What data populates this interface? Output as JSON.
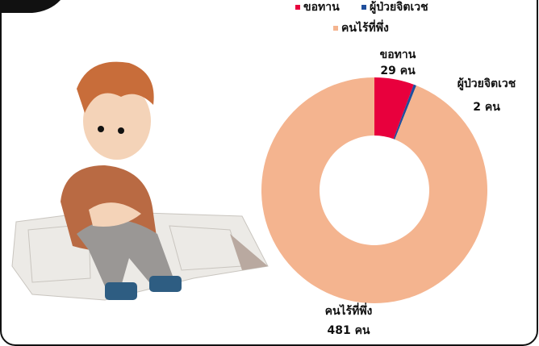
{
  "chart_data": {
    "type": "pie",
    "categories": [
      "ขอทาน",
      "ผู้ป่วยจิตเวช",
      "คนไร้ที่พึ่ง"
    ],
    "series": [
      {
        "name": "ขอทาน",
        "color": "#e8003d"
      },
      {
        "name": "ผู้ป่วยจิตเวช",
        "color": "#1f4e9c"
      },
      {
        "name": "คนไร้ที่พึ่ง",
        "color": "#f4b48f"
      }
    ],
    "values": [
      29,
      2,
      481
    ],
    "value_labels": [
      "29 คน",
      "2 คน",
      "481 คน"
    ],
    "legend": "top"
  }
}
